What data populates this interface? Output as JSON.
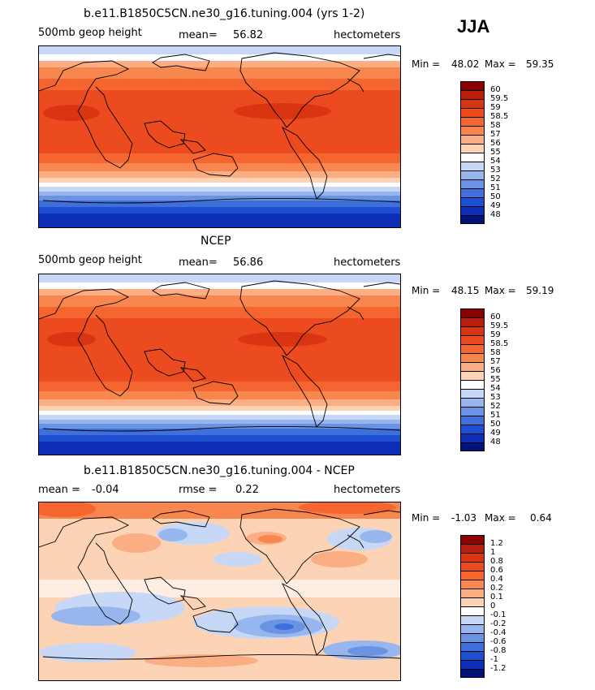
{
  "season": "JJA",
  "panels": [
    {
      "title": "b.e11.B1850C5CN.ne30_g16.tuning.004 (yrs 1-2)",
      "left_label": "500mb geop height",
      "stat_label": "mean=",
      "stat_value": "56.82",
      "stat2_label": "",
      "stat2_value": "",
      "units": "hectometers",
      "min_label": "Min =",
      "min_value": "48.02",
      "max_label": "Max =",
      "max_value": "59.35",
      "colorbar": {
        "labels": [
          "60",
          "59.5",
          "59",
          "58.5",
          "58",
          "57",
          "56",
          "55",
          "54",
          "53",
          "52",
          "51",
          "50",
          "49",
          "48"
        ],
        "colors": [
          "#8b0000",
          "#b81e0e",
          "#d93512",
          "#ec4b1f",
          "#f4652f",
          "#f8864f",
          "#fbad84",
          "#fdd3b6",
          "#ffffff",
          "#c7d8f6",
          "#98b6ee",
          "#6b93e3",
          "#3f6fdb",
          "#1d4fd0",
          "#0d2fb8",
          "#00137a"
        ]
      }
    },
    {
      "title": "NCEP",
      "left_label": "500mb geop height",
      "stat_label": "mean=",
      "stat_value": "56.86",
      "stat2_label": "",
      "stat2_value": "",
      "units": "hectometers",
      "min_label": "Min =",
      "min_value": "48.15",
      "max_label": "Max =",
      "max_value": "59.19",
      "colorbar": {
        "labels": [
          "60",
          "59.5",
          "59",
          "58.5",
          "58",
          "57",
          "56",
          "55",
          "54",
          "53",
          "52",
          "51",
          "50",
          "49",
          "48"
        ],
        "colors": [
          "#8b0000",
          "#b81e0e",
          "#d93512",
          "#ec4b1f",
          "#f4652f",
          "#f8864f",
          "#fbad84",
          "#fdd3b6",
          "#ffffff",
          "#c7d8f6",
          "#98b6ee",
          "#6b93e3",
          "#3f6fdb",
          "#1d4fd0",
          "#0d2fb8",
          "#00137a"
        ]
      }
    },
    {
      "title": "b.e11.B1850C5CN.ne30_g16.tuning.004 - NCEP",
      "left_label": "",
      "stat_label": "mean =",
      "stat_value": "-0.04",
      "stat2_label": "rmse =",
      "stat2_value": "0.22",
      "units": "hectometers",
      "min_label": "Min =",
      "min_value": "-1.03",
      "max_label": "Max =",
      "max_value": "0.64",
      "colorbar": {
        "labels": [
          "1.2",
          "1",
          "0.8",
          "0.6",
          "0.4",
          "0.2",
          "0.1",
          "0",
          "-0.1",
          "-0.2",
          "-0.4",
          "-0.6",
          "-0.8",
          "-1",
          "-1.2"
        ],
        "colors": [
          "#8b0000",
          "#b81e0e",
          "#d93512",
          "#ec4b1f",
          "#f4652f",
          "#f8864f",
          "#fbad84",
          "#fdd3b6",
          "#ffffff",
          "#c7d8f6",
          "#98b6ee",
          "#6b93e3",
          "#3f6fdb",
          "#1d4fd0",
          "#0d2fb8",
          "#00137a"
        ]
      }
    }
  ]
}
